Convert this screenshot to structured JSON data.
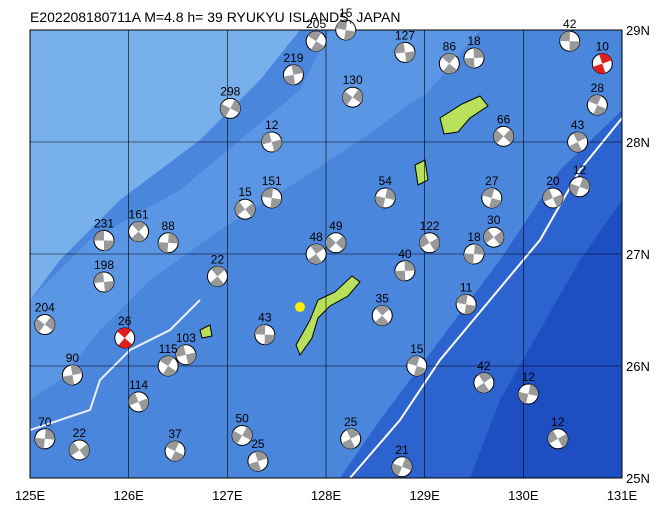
{
  "title": "E202208180711A  M=4.8  h= 39  RYUKYU ISLANDS, JAPAN",
  "lonlim": [
    125,
    131
  ],
  "latlim": [
    25,
    29
  ],
  "lon_ticks": [
    {
      "value": 125,
      "label": "125E"
    },
    {
      "value": 126,
      "label": "126E"
    },
    {
      "value": 127,
      "label": "127E"
    },
    {
      "value": 128,
      "label": "128E"
    },
    {
      "value": 129,
      "label": "129E"
    },
    {
      "value": 130,
      "label": "130E"
    },
    {
      "value": 131,
      "label": "131E"
    }
  ],
  "lat_ticks": [
    {
      "value": 25,
      "label": "25N"
    },
    {
      "value": 26,
      "label": "26N"
    },
    {
      "value": 27,
      "label": "27N"
    },
    {
      "value": 28,
      "label": "28N"
    },
    {
      "value": 29,
      "label": "29N"
    }
  ],
  "events": [
    {
      "lon": 125.75,
      "lat": 27.12,
      "depth": 231
    },
    {
      "lon": 126.1,
      "lat": 27.2,
      "depth": 161
    },
    {
      "lon": 126.4,
      "lat": 27.1,
      "depth": 88
    },
    {
      "lon": 127.18,
      "lat": 27.4,
      "depth": 15
    },
    {
      "lon": 127.45,
      "lat": 27.5,
      "depth": 151
    },
    {
      "lon": 127.9,
      "lat": 27.0,
      "depth": 48
    },
    {
      "lon": 128.6,
      "lat": 27.5,
      "depth": 54
    },
    {
      "lon": 129.05,
      "lat": 27.1,
      "depth": 122
    },
    {
      "lon": 129.68,
      "lat": 27.5,
      "depth": 27
    },
    {
      "lon": 130.55,
      "lat": 28.0,
      "depth": 43
    },
    {
      "lon": 130.57,
      "lat": 27.6,
      "depth": 12
    },
    {
      "lon": 130.3,
      "lat": 27.5,
      "depth": 20
    },
    {
      "lon": 130.75,
      "lat": 28.33,
      "depth": 28
    },
    {
      "lon": 130.8,
      "lat": 28.7,
      "depth": 10,
      "highlight": true
    },
    {
      "lon": 127.03,
      "lat": 28.3,
      "depth": 298
    },
    {
      "lon": 127.45,
      "lat": 28.0,
      "depth": 12
    },
    {
      "lon": 127.9,
      "lat": 28.9,
      "depth": 205
    },
    {
      "lon": 127.67,
      "lat": 28.6,
      "depth": 219
    },
    {
      "lon": 128.27,
      "lat": 28.4,
      "depth": 130
    },
    {
      "lon": 128.8,
      "lat": 28.8,
      "depth": 127
    },
    {
      "lon": 129.25,
      "lat": 28.7,
      "depth": 86
    },
    {
      "lon": 129.5,
      "lat": 28.75,
      "depth": 18
    },
    {
      "lon": 129.8,
      "lat": 28.05,
      "depth": 66
    },
    {
      "lon": 130.47,
      "lat": 28.9,
      "depth": 42
    },
    {
      "lon": 128.57,
      "lat": 26.45,
      "depth": 35
    },
    {
      "lon": 129.5,
      "lat": 27.0,
      "depth": 18
    },
    {
      "lon": 129.7,
      "lat": 27.15,
      "depth": 30
    },
    {
      "lon": 129.42,
      "lat": 26.55,
      "depth": 11
    },
    {
      "lon": 129.6,
      "lat": 25.85,
      "depth": 42
    },
    {
      "lon": 130.05,
      "lat": 25.75,
      "depth": 12
    },
    {
      "lon": 130.35,
      "lat": 25.35,
      "depth": 12
    },
    {
      "lon": 128.92,
      "lat": 26.0,
      "depth": 15
    },
    {
      "lon": 128.25,
      "lat": 25.35,
      "depth": 25
    },
    {
      "lon": 128.77,
      "lat": 25.1,
      "depth": 21
    },
    {
      "lon": 126.1,
      "lat": 25.68,
      "depth": 114
    },
    {
      "lon": 126.47,
      "lat": 25.24,
      "depth": 37
    },
    {
      "lon": 127.31,
      "lat": 25.15,
      "depth": 25
    },
    {
      "lon": 127.15,
      "lat": 25.38,
      "depth": 50
    },
    {
      "lon": 126.58,
      "lat": 26.1,
      "depth": 103
    },
    {
      "lon": 126.4,
      "lat": 26.0,
      "depth": 115
    },
    {
      "lon": 125.43,
      "lat": 25.92,
      "depth": 90
    },
    {
      "lon": 125.15,
      "lat": 26.37,
      "depth": 204
    },
    {
      "lon": 125.75,
      "lat": 26.75,
      "depth": 198
    },
    {
      "lon": 125.96,
      "lat": 26.25,
      "depth": 26,
      "highlight": true
    },
    {
      "lon": 128.8,
      "lat": 26.85,
      "depth": 40
    },
    {
      "lon": 128.1,
      "lat": 27.1,
      "depth": 49
    },
    {
      "lon": 127.38,
      "lat": 26.28,
      "depth": 43
    },
    {
      "lon": 126.9,
      "lat": 26.8,
      "depth": 22
    },
    {
      "lon": 125.15,
      "lat": 25.35,
      "depth": 70
    },
    {
      "lon": 125.5,
      "lat": 25.25,
      "depth": 22
    },
    {
      "lon": 128.2,
      "lat": 29.0,
      "depth": 15
    }
  ]
}
